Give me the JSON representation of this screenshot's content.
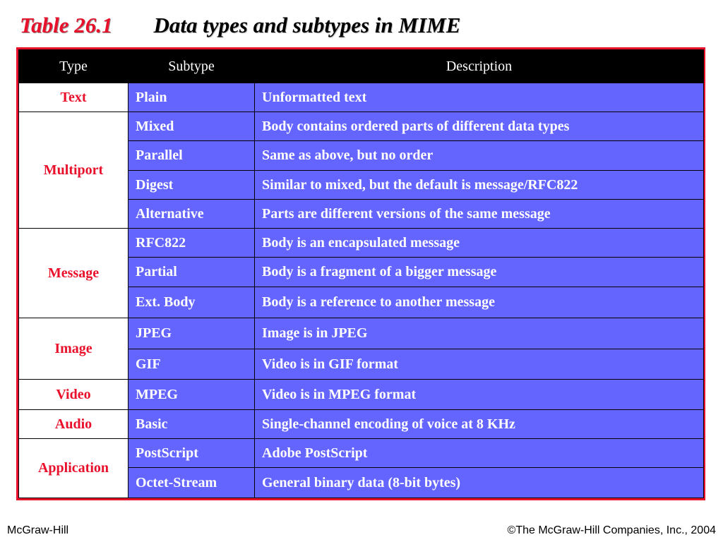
{
  "title": {
    "number": "Table 26.1",
    "text": "Data types and subtypes in MIME"
  },
  "table": {
    "headers": [
      "Type",
      "Subtype",
      "Description"
    ],
    "groups": [
      {
        "type": "Text",
        "rows": [
          {
            "subtype": "Plain",
            "description": "Unformatted text"
          }
        ]
      },
      {
        "type": "Multiport",
        "rows": [
          {
            "subtype": "Mixed",
            "description": "Body contains ordered parts of different data types"
          },
          {
            "subtype": "Parallel",
            "description": "Same as above, but no order"
          },
          {
            "subtype": "Digest",
            "description": "Similar to mixed, but the default is message/RFC822"
          },
          {
            "subtype": "Alternative",
            "description": "Parts are different versions of the same message"
          }
        ]
      },
      {
        "type": "Message",
        "rows": [
          {
            "subtype": "RFC822",
            "description": "Body is an encapsulated message"
          },
          {
            "subtype": "Partial",
            "description": "Body is a fragment of a bigger message"
          },
          {
            "subtype": "Ext. Body",
            "description": "Body is a reference to another message"
          }
        ]
      },
      {
        "type": "Image",
        "rows": [
          {
            "subtype": "JPEG",
            "description": "Image is in JPEG"
          },
          {
            "subtype": "GIF",
            "description": "Video is in GIF format"
          }
        ]
      },
      {
        "type": "Video",
        "rows": [
          {
            "subtype": "MPEG",
            "description": "Video is in MPEG format"
          }
        ]
      },
      {
        "type": "Audio",
        "rows": [
          {
            "subtype": "Basic",
            "description": "Single-channel encoding of voice at 8 KHz"
          }
        ]
      },
      {
        "type": "Application",
        "rows": [
          {
            "subtype": "PostScript",
            "description": "Adobe PostScript"
          },
          {
            "subtype": "Octet-Stream",
            "description": "General binary data (8-bit bytes)"
          }
        ]
      }
    ]
  },
  "footer": {
    "left": "McGraw-Hill",
    "right": "©The McGraw-Hill Companies, Inc., 2004"
  },
  "colors": {
    "accent_red": "#e8102a",
    "cell_blue": "#6464ff",
    "header_black": "#000000"
  }
}
